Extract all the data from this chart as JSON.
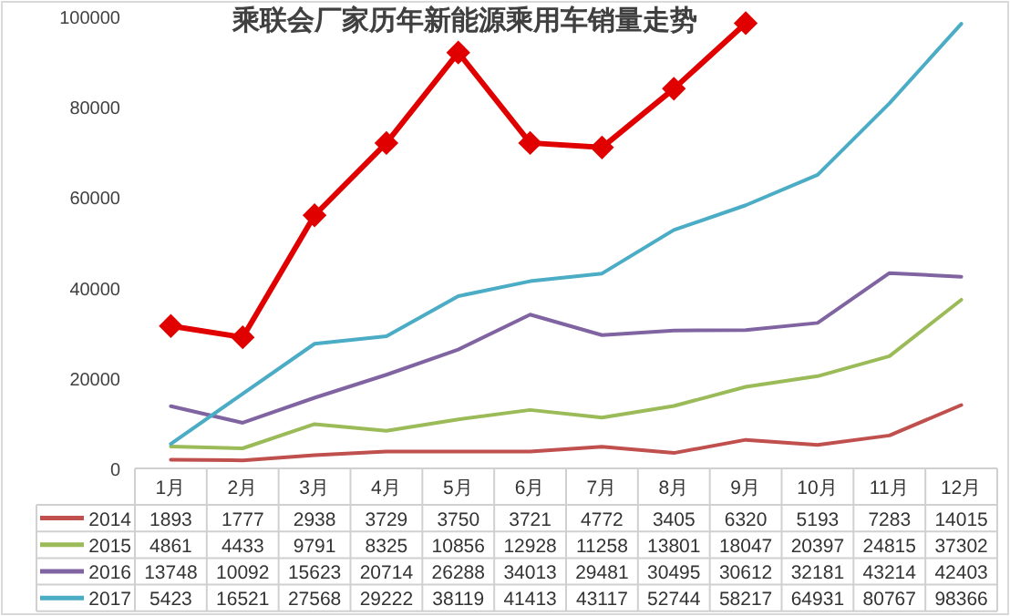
{
  "chart_data": {
    "type": "line",
    "title": "乘联会厂家历年新能源乘用车销量走势",
    "categories": [
      "1月",
      "2月",
      "3月",
      "4月",
      "5月",
      "6月",
      "7月",
      "8月",
      "9月",
      "10月",
      "11月",
      "12月"
    ],
    "ylim": [
      0,
      100000
    ],
    "yticks": [
      0,
      20000,
      40000,
      60000,
      80000,
      100000
    ],
    "grid": false,
    "legend": "bottom",
    "series": [
      {
        "name": "2014",
        "color": "#c0504d",
        "marker": "none",
        "values": [
          1893,
          1777,
          2938,
          3729,
          3750,
          3721,
          4772,
          3405,
          6320,
          5193,
          7283,
          14015
        ],
        "value_labels": [
          "1893",
          "1777",
          "2938",
          "3729",
          "3750",
          "3721",
          "4772",
          "3405",
          "6320",
          "5193",
          "7283",
          "14015"
        ]
      },
      {
        "name": "2015",
        "color": "#9bbb59",
        "marker": "none",
        "values": [
          4861,
          4433,
          9791,
          8325,
          10856,
          12928,
          11258,
          13801,
          18047,
          20397,
          24815,
          37302
        ],
        "value_labels": [
          "4861",
          "4433",
          "9791",
          "8325",
          "10856",
          "12928",
          "11258",
          "13801",
          "18047",
          "20397",
          "24815",
          "37302"
        ]
      },
      {
        "name": "2016",
        "color": "#8064a2",
        "marker": "none",
        "values": [
          13748,
          10092,
          15623,
          20714,
          26288,
          34013,
          29481,
          30495,
          30612,
          32181,
          43214,
          42403
        ],
        "value_labels": [
          "13748",
          "10092",
          "15623",
          "20714",
          "26288",
          "34013",
          "29481",
          "30495",
          "30612",
          "32181",
          "43214",
          "42403"
        ]
      },
      {
        "name": "2017",
        "color": "#4bacc6",
        "marker": "none",
        "values": [
          5423,
          16521,
          27568,
          29222,
          38119,
          41413,
          43117,
          52744,
          58217,
          64931,
          80767,
          98366
        ],
        "value_labels": [
          "5423",
          "16521",
          "27568",
          "29222",
          "38119",
          "41413",
          "43117",
          "52744",
          "58217",
          "64931",
          "80767",
          "98366"
        ]
      },
      {
        "color": "#e00000",
        "marker": "diamond",
        "values": [
          31500,
          29000,
          56000,
          72000,
          92000,
          72000,
          71000,
          84000,
          98500,
          null,
          null,
          null
        ]
      }
    ]
  }
}
